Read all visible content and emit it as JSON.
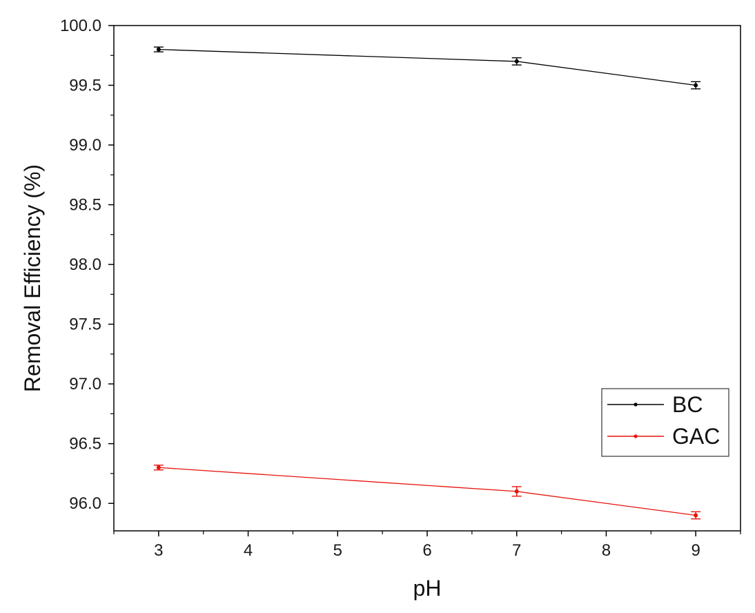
{
  "chart_data": {
    "type": "line",
    "xlabel": "pH",
    "ylabel": "Removal Efficiency (%)",
    "xlim": [
      2.5,
      9.5
    ],
    "ylim": [
      95.77,
      100.0
    ],
    "xticks": [
      "3",
      "4",
      "5",
      "6",
      "7",
      "8",
      "9"
    ],
    "yticks": [
      "96.0",
      "96.5",
      "97.0",
      "97.5",
      "98.0",
      "98.5",
      "99.0",
      "99.5",
      "100.0"
    ],
    "grid": false,
    "legend_position": "bottom-right",
    "series": [
      {
        "name": "BC",
        "color": "#000000",
        "points": [
          {
            "x": 3,
            "y": 99.8,
            "err": 0.02
          },
          {
            "x": 7,
            "y": 99.7,
            "err": 0.03
          },
          {
            "x": 9,
            "y": 99.5,
            "err": 0.03
          }
        ]
      },
      {
        "name": "GAC",
        "color": "#e8120c",
        "points": [
          {
            "x": 3,
            "y": 96.3,
            "err": 0.02
          },
          {
            "x": 7,
            "y": 96.1,
            "err": 0.04
          },
          {
            "x": 9,
            "y": 95.9,
            "err": 0.03
          }
        ]
      }
    ]
  }
}
